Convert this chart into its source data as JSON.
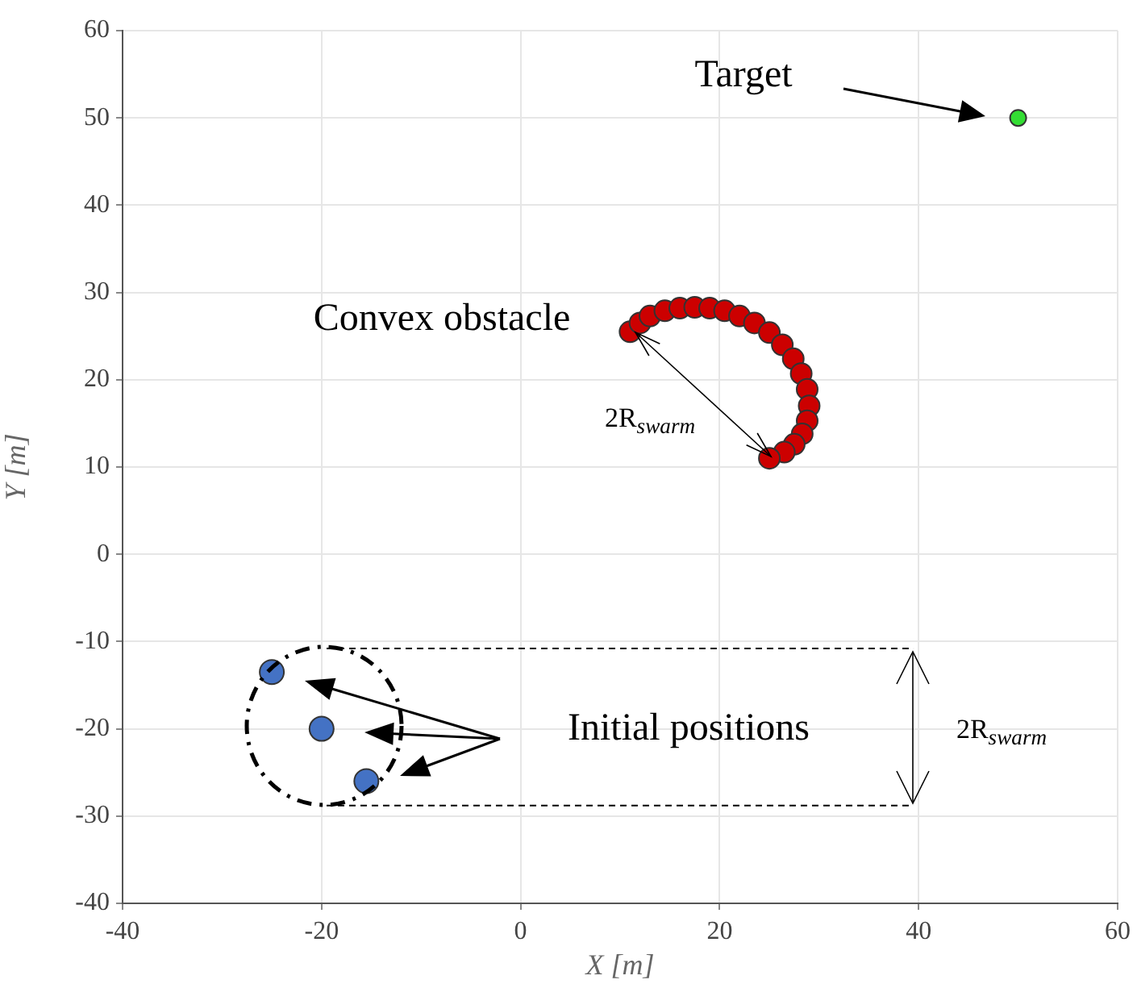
{
  "chart_data": {
    "type": "scatter",
    "xlabel": "X [m]",
    "ylabel": "Y [m]",
    "xlim": [
      -40,
      60
    ],
    "ylim": [
      -40,
      60
    ],
    "xticks": [
      -40,
      -20,
      0,
      20,
      40,
      60
    ],
    "yticks": [
      -40,
      -30,
      -20,
      -10,
      0,
      10,
      20,
      30,
      40,
      50,
      60
    ],
    "grid": true,
    "legend": false,
    "marker": "circle",
    "series": [
      {
        "color": "#33dd33",
        "x": [
          50
        ],
        "values": [
          50
        ]
      },
      {
        "color": "#cc0000",
        "x": [
          11,
          12,
          13,
          14.5,
          16,
          17.5,
          19,
          20.5,
          22,
          23.5,
          25,
          26.3,
          27.4,
          28.2,
          28.8,
          29,
          28.8,
          28.3,
          27.5,
          26.5,
          25
        ],
        "values": [
          25.5,
          26.5,
          27.3,
          27.9,
          28.2,
          28.3,
          28.2,
          27.9,
          27.3,
          26.5,
          25.4,
          24,
          22.4,
          20.7,
          18.9,
          17,
          15.3,
          13.8,
          12.6,
          11.7,
          11
        ]
      },
      {
        "color": "#4472c4",
        "x": [
          -25,
          -20,
          -15.5
        ],
        "values": [
          -13.5,
          -20,
          -26
        ]
      },
      {
        "type": "line",
        "marker": "none",
        "line_style": "dashed",
        "color": "#000000",
        "x": [
          -19.5,
          39.5
        ],
        "values": [
          -10.8,
          -10.8
        ]
      },
      {
        "type": "line",
        "marker": "none",
        "line_style": "dashed",
        "color": "#000000",
        "x": [
          -19.5,
          39.5
        ],
        "values": [
          -28.8,
          -28.8
        ]
      }
    ],
    "annotations": [
      "Target",
      "Convex obstacle",
      "2R$_{swarm}$",
      "Initial positions",
      "2R$_{swarm}$"
    ]
  }
}
